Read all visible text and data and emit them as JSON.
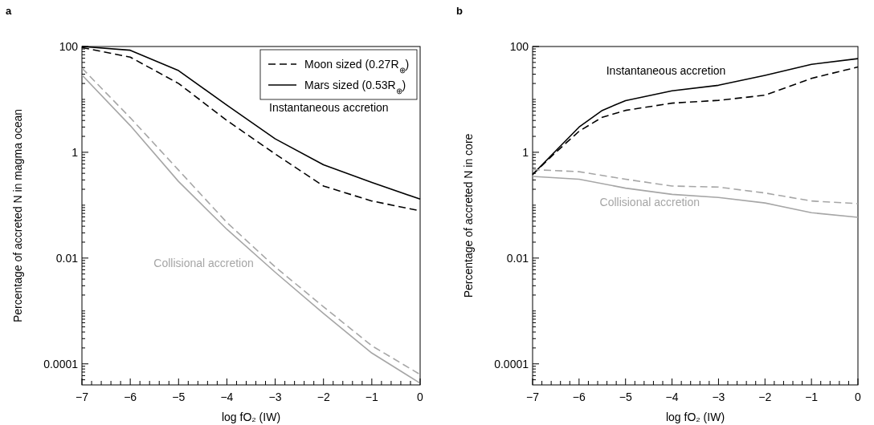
{
  "chart_data": [
    {
      "type": "line",
      "title": "a",
      "xlabel": "log fO₂ (IW)",
      "ylabel": "Percentage of accreted N in magma ocean",
      "log": "y",
      "legend": "top right",
      "grid": false,
      "x": [
        -7,
        -6,
        -5,
        -4,
        -3,
        -2,
        -1,
        0
      ],
      "series": [
        {
          "name": "Moon sized (0.27R$_{⊕}$)",
          "color": "#000000",
          "line_style": "dashed",
          "values": [
            96,
            63,
            20,
            4,
            0.93,
            0.23,
            0.12,
            0.078
          ]
        },
        {
          "name": "Mars sized (0.53R$_{⊕}$)",
          "color": "#000000",
          "line_style": "solid",
          "values": [
            100,
            85,
            35,
            7.8,
            1.8,
            0.58,
            0.27,
            0.13
          ]
        },
        {
          "color": "#a6a6a6",
          "line_style": "dashed",
          "values": [
            39,
            4.5,
            0.46,
            0.047,
            0.0068,
            0.0012,
            0.00022,
            6.3e-05
          ]
        },
        {
          "color": "#a6a6a6",
          "line_style": "solid",
          "values": [
            29,
            3.2,
            0.28,
            0.035,
            0.0054,
            0.0009,
            0.00016,
            4.3e-05
          ]
        }
      ],
      "annotations": [
        "Instantaneous accretion",
        "Collisional accretion"
      ],
      "xlim": [
        -7,
        0
      ],
      "xticks": [
        {
          "value": -7,
          "label": "−7"
        },
        {
          "value": -6.8,
          "label": null
        },
        {
          "value": -6.6,
          "label": null
        },
        {
          "value": -6.4,
          "label": null
        },
        {
          "value": -6.2,
          "label": null
        },
        {
          "value": -6,
          "label": "−6"
        },
        {
          "value": -5.8,
          "label": null
        },
        {
          "value": -5.6,
          "label": null
        },
        {
          "value": -5.4,
          "label": null
        },
        {
          "value": -5.2,
          "label": null
        },
        {
          "value": -5,
          "label": "−5"
        },
        {
          "value": -4.8,
          "label": null
        },
        {
          "value": -4.6,
          "label": null
        },
        {
          "value": -4.4,
          "label": null
        },
        {
          "value": -4.2,
          "label": null
        },
        {
          "value": -4,
          "label": "−4"
        },
        {
          "value": -3.8,
          "label": null
        },
        {
          "value": -3.6,
          "label": null
        },
        {
          "value": -3.4,
          "label": null
        },
        {
          "value": -3.2,
          "label": null
        },
        {
          "value": -3,
          "label": "−3"
        },
        {
          "value": -2.8,
          "label": null
        },
        {
          "value": -2.6,
          "label": null
        },
        {
          "value": -2.4,
          "label": null
        },
        {
          "value": -2.2,
          "label": null
        },
        {
          "value": -2,
          "label": "−2"
        },
        {
          "value": -1.8,
          "label": null
        },
        {
          "value": -1.6,
          "label": null
        },
        {
          "value": -1.4,
          "label": null
        },
        {
          "value": -1.2,
          "label": null
        },
        {
          "value": -1,
          "label": "−1"
        },
        {
          "value": -0.8,
          "label": null
        },
        {
          "value": -0.6,
          "label": null
        },
        {
          "value": -0.4,
          "label": null
        },
        {
          "value": -0.2,
          "label": null
        },
        0
      ],
      "ylim": [
        4e-05,
        100
      ],
      "yticks": [
        {
          "value": 5e-05,
          "label": null
        },
        {
          "value": 6e-05,
          "label": null
        },
        {
          "value": 7e-05,
          "label": null
        },
        {
          "value": 8e-05,
          "label": null
        },
        {
          "value": 9e-05,
          "label": null
        },
        0.0001,
        {
          "value": 0.0002,
          "label": null
        },
        {
          "value": 0.0003,
          "label": null
        },
        {
          "value": 0.0004,
          "label": null
        },
        {
          "value": 0.0005,
          "label": null
        },
        {
          "value": 0.0006,
          "label": null
        },
        {
          "value": 0.0007,
          "label": null
        },
        {
          "value": 0.0008,
          "label": null
        },
        {
          "value": 0.0009,
          "label": null
        },
        {
          "value": 0.001,
          "label": null
        },
        {
          "value": 0.002,
          "label": null
        },
        {
          "value": 0.003,
          "label": null
        },
        {
          "value": 0.004,
          "label": null
        },
        {
          "value": 0.005,
          "label": null
        },
        {
          "value": 0.006,
          "label": null
        },
        {
          "value": 0.007,
          "label": null
        },
        {
          "value": 0.008,
          "label": null
        },
        {
          "value": 0.009,
          "label": null
        },
        0.01,
        {
          "value": 0.02,
          "label": null
        },
        {
          "value": 0.03,
          "label": null
        },
        {
          "value": 0.04,
          "label": null
        },
        {
          "value": 0.05,
          "label": null
        },
        {
          "value": 0.06,
          "label": null
        },
        {
          "value": 0.07,
          "label": null
        },
        {
          "value": 0.08,
          "label": null
        },
        {
          "value": 0.09,
          "label": null
        },
        {
          "value": 0.1,
          "label": null
        },
        {
          "value": 0.2,
          "label": null
        },
        {
          "value": 0.3,
          "label": null
        },
        {
          "value": 0.4,
          "label": null
        },
        {
          "value": 0.5,
          "label": null
        },
        {
          "value": 0.6,
          "label": null
        },
        {
          "value": 0.7,
          "label": null
        },
        {
          "value": 0.8,
          "label": null
        },
        {
          "value": 0.9,
          "label": null
        },
        1,
        {
          "value": 2,
          "label": null
        },
        {
          "value": 3,
          "label": null
        },
        {
          "value": 4,
          "label": null
        },
        {
          "value": 5,
          "label": null
        },
        {
          "value": 6,
          "label": null
        },
        {
          "value": 7,
          "label": null
        },
        {
          "value": 8,
          "label": null
        },
        {
          "value": 9,
          "label": null
        },
        {
          "value": 10,
          "label": null
        },
        {
          "value": 20,
          "label": null
        },
        {
          "value": 30,
          "label": null
        },
        {
          "value": 40,
          "label": null
        },
        {
          "value": 50,
          "label": null
        },
        {
          "value": 60,
          "label": null
        },
        {
          "value": 70,
          "label": null
        },
        {
          "value": 80,
          "label": null
        },
        {
          "value": 90,
          "label": null
        },
        100
      ]
    },
    {
      "type": "line",
      "title": "b",
      "xlabel": "log fO₂ (IW)",
      "ylabel": "Percentage of accreted N in core",
      "log": "y",
      "grid": false,
      "x": [
        -7,
        -6.5,
        -6,
        -5.5,
        -5,
        -4,
        -3,
        -2,
        -1,
        0
      ],
      "series": [
        {
          "color": "#000000",
          "line_style": "dashed",
          "values": [
            0.38,
            1,
            2.5,
            4.6,
            6.2,
            8.5,
            9.6,
            12,
            25,
            41
          ]
        },
        {
          "color": "#000000",
          "line_style": "solid",
          "values": [
            0.38,
            1.07,
            3,
            6.2,
            9.5,
            14.5,
            18.5,
            28.5,
            46,
            59
          ]
        },
        {
          "color": "#a6a6a6",
          "line_style": "dashed",
          "x": [
            -7,
            -6,
            -5,
            -4,
            -3,
            -2,
            -1,
            0
          ],
          "values": [
            0.47,
            0.43,
            0.31,
            0.23,
            0.22,
            0.17,
            0.12,
            0.107
          ]
        },
        {
          "color": "#a6a6a6",
          "line_style": "solid",
          "x": [
            -7,
            -6,
            -5,
            -4,
            -3,
            -2,
            -1,
            0
          ],
          "values": [
            0.35,
            0.31,
            0.21,
            0.16,
            0.14,
            0.11,
            0.072,
            0.059
          ]
        }
      ],
      "annotations": [
        "Instantaneous accretion",
        "Collisional accretion"
      ],
      "xlim": [
        -7,
        0
      ],
      "xticks": [
        {
          "value": -7,
          "label": "−7"
        },
        {
          "value": -6.8,
          "label": null
        },
        {
          "value": -6.6,
          "label": null
        },
        {
          "value": -6.4,
          "label": null
        },
        {
          "value": -6.2,
          "label": null
        },
        {
          "value": -6,
          "label": "−6"
        },
        {
          "value": -5.8,
          "label": null
        },
        {
          "value": -5.6,
          "label": null
        },
        {
          "value": -5.4,
          "label": null
        },
        {
          "value": -5.2,
          "label": null
        },
        {
          "value": -5,
          "label": "−5"
        },
        {
          "value": -4.8,
          "label": null
        },
        {
          "value": -4.6,
          "label": null
        },
        {
          "value": -4.4,
          "label": null
        },
        {
          "value": -4.2,
          "label": null
        },
        {
          "value": -4,
          "label": "−4"
        },
        {
          "value": -3.8,
          "label": null
        },
        {
          "value": -3.6,
          "label": null
        },
        {
          "value": -3.4,
          "label": null
        },
        {
          "value": -3.2,
          "label": null
        },
        {
          "value": -3,
          "label": "−3"
        },
        {
          "value": -2.8,
          "label": null
        },
        {
          "value": -2.6,
          "label": null
        },
        {
          "value": -2.4,
          "label": null
        },
        {
          "value": -2.2,
          "label": null
        },
        {
          "value": -2,
          "label": "−2"
        },
        {
          "value": -1.8,
          "label": null
        },
        {
          "value": -1.6,
          "label": null
        },
        {
          "value": -1.4,
          "label": null
        },
        {
          "value": -1.2,
          "label": null
        },
        {
          "value": -1,
          "label": "−1"
        },
        {
          "value": -0.8,
          "label": null
        },
        {
          "value": -0.6,
          "label": null
        },
        {
          "value": -0.4,
          "label": null
        },
        {
          "value": -0.2,
          "label": null
        },
        0
      ],
      "ylim": [
        4e-05,
        100
      ],
      "yticks": [
        {
          "value": 5e-05,
          "label": null
        },
        {
          "value": 6e-05,
          "label": null
        },
        {
          "value": 7e-05,
          "label": null
        },
        {
          "value": 8e-05,
          "label": null
        },
        {
          "value": 9e-05,
          "label": null
        },
        0.0001,
        {
          "value": 0.0002,
          "label": null
        },
        {
          "value": 0.0003,
          "label": null
        },
        {
          "value": 0.0004,
          "label": null
        },
        {
          "value": 0.0005,
          "label": null
        },
        {
          "value": 0.0006,
          "label": null
        },
        {
          "value": 0.0007,
          "label": null
        },
        {
          "value": 0.0008,
          "label": null
        },
        {
          "value": 0.0009,
          "label": null
        },
        {
          "value": 0.001,
          "label": null
        },
        {
          "value": 0.002,
          "label": null
        },
        {
          "value": 0.003,
          "label": null
        },
        {
          "value": 0.004,
          "label": null
        },
        {
          "value": 0.005,
          "label": null
        },
        {
          "value": 0.006,
          "label": null
        },
        {
          "value": 0.007,
          "label": null
        },
        {
          "value": 0.008,
          "label": null
        },
        {
          "value": 0.009,
          "label": null
        },
        0.01,
        {
          "value": 0.02,
          "label": null
        },
        {
          "value": 0.03,
          "label": null
        },
        {
          "value": 0.04,
          "label": null
        },
        {
          "value": 0.05,
          "label": null
        },
        {
          "value": 0.06,
          "label": null
        },
        {
          "value": 0.07,
          "label": null
        },
        {
          "value": 0.08,
          "label": null
        },
        {
          "value": 0.09,
          "label": null
        },
        {
          "value": 0.1,
          "label": null
        },
        {
          "value": 0.2,
          "label": null
        },
        {
          "value": 0.3,
          "label": null
        },
        {
          "value": 0.4,
          "label": null
        },
        {
          "value": 0.5,
          "label": null
        },
        {
          "value": 0.6,
          "label": null
        },
        {
          "value": 0.7,
          "label": null
        },
        {
          "value": 0.8,
          "label": null
        },
        {
          "value": 0.9,
          "label": null
        },
        1,
        {
          "value": 2,
          "label": null
        },
        {
          "value": 3,
          "label": null
        },
        {
          "value": 4,
          "label": null
        },
        {
          "value": 5,
          "label": null
        },
        {
          "value": 6,
          "label": null
        },
        {
          "value": 7,
          "label": null
        },
        {
          "value": 8,
          "label": null
        },
        {
          "value": 9,
          "label": null
        },
        {
          "value": 10,
          "label": null
        },
        {
          "value": 20,
          "label": null
        },
        {
          "value": 30,
          "label": null
        },
        {
          "value": 40,
          "label": null
        },
        {
          "value": 50,
          "label": null
        },
        {
          "value": 60,
          "label": null
        },
        {
          "value": 70,
          "label": null
        },
        {
          "value": 80,
          "label": null
        },
        {
          "value": 90,
          "label": null
        },
        100
      ]
    }
  ]
}
